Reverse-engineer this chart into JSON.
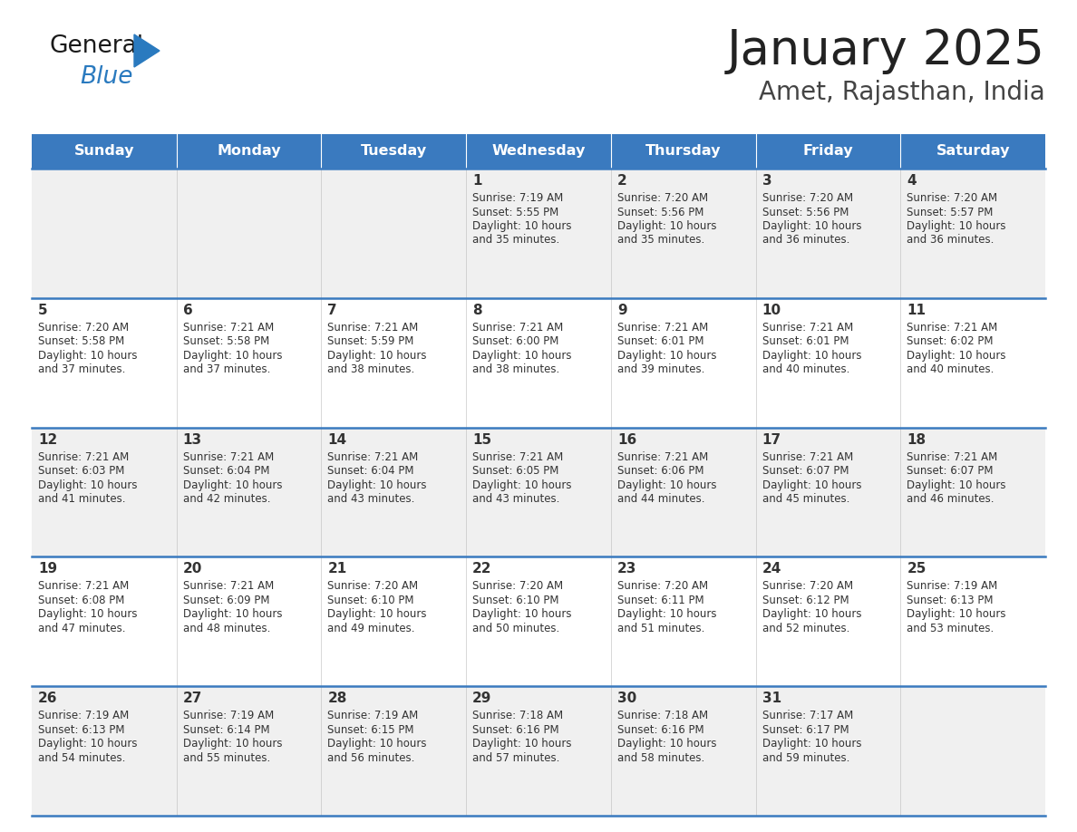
{
  "title": "January 2025",
  "subtitle": "Amet, Rajasthan, India",
  "days_of_week": [
    "Sunday",
    "Monday",
    "Tuesday",
    "Wednesday",
    "Thursday",
    "Friday",
    "Saturday"
  ],
  "header_bg": "#3a7abf",
  "header_text_color": "#ffffff",
  "row_bg_odd": "#f0f0f0",
  "row_bg_even": "#ffffff",
  "cell_text_color": "#333333",
  "border_color": "#3a7abf",
  "title_color": "#222222",
  "subtitle_color": "#444444",
  "weeks": [
    [
      {
        "day": null,
        "sunrise": null,
        "sunset": null,
        "daylight": null
      },
      {
        "day": null,
        "sunrise": null,
        "sunset": null,
        "daylight": null
      },
      {
        "day": null,
        "sunrise": null,
        "sunset": null,
        "daylight": null
      },
      {
        "day": 1,
        "sunrise": "7:19 AM",
        "sunset": "5:55 PM",
        "daylight": "10 hours and 35 minutes."
      },
      {
        "day": 2,
        "sunrise": "7:20 AM",
        "sunset": "5:56 PM",
        "daylight": "10 hours and 35 minutes."
      },
      {
        "day": 3,
        "sunrise": "7:20 AM",
        "sunset": "5:56 PM",
        "daylight": "10 hours and 36 minutes."
      },
      {
        "day": 4,
        "sunrise": "7:20 AM",
        "sunset": "5:57 PM",
        "daylight": "10 hours and 36 minutes."
      }
    ],
    [
      {
        "day": 5,
        "sunrise": "7:20 AM",
        "sunset": "5:58 PM",
        "daylight": "10 hours and 37 minutes."
      },
      {
        "day": 6,
        "sunrise": "7:21 AM",
        "sunset": "5:58 PM",
        "daylight": "10 hours and 37 minutes."
      },
      {
        "day": 7,
        "sunrise": "7:21 AM",
        "sunset": "5:59 PM",
        "daylight": "10 hours and 38 minutes."
      },
      {
        "day": 8,
        "sunrise": "7:21 AM",
        "sunset": "6:00 PM",
        "daylight": "10 hours and 38 minutes."
      },
      {
        "day": 9,
        "sunrise": "7:21 AM",
        "sunset": "6:01 PM",
        "daylight": "10 hours and 39 minutes."
      },
      {
        "day": 10,
        "sunrise": "7:21 AM",
        "sunset": "6:01 PM",
        "daylight": "10 hours and 40 minutes."
      },
      {
        "day": 11,
        "sunrise": "7:21 AM",
        "sunset": "6:02 PM",
        "daylight": "10 hours and 40 minutes."
      }
    ],
    [
      {
        "day": 12,
        "sunrise": "7:21 AM",
        "sunset": "6:03 PM",
        "daylight": "10 hours and 41 minutes."
      },
      {
        "day": 13,
        "sunrise": "7:21 AM",
        "sunset": "6:04 PM",
        "daylight": "10 hours and 42 minutes."
      },
      {
        "day": 14,
        "sunrise": "7:21 AM",
        "sunset": "6:04 PM",
        "daylight": "10 hours and 43 minutes."
      },
      {
        "day": 15,
        "sunrise": "7:21 AM",
        "sunset": "6:05 PM",
        "daylight": "10 hours and 43 minutes."
      },
      {
        "day": 16,
        "sunrise": "7:21 AM",
        "sunset": "6:06 PM",
        "daylight": "10 hours and 44 minutes."
      },
      {
        "day": 17,
        "sunrise": "7:21 AM",
        "sunset": "6:07 PM",
        "daylight": "10 hours and 45 minutes."
      },
      {
        "day": 18,
        "sunrise": "7:21 AM",
        "sunset": "6:07 PM",
        "daylight": "10 hours and 46 minutes."
      }
    ],
    [
      {
        "day": 19,
        "sunrise": "7:21 AM",
        "sunset": "6:08 PM",
        "daylight": "10 hours and 47 minutes."
      },
      {
        "day": 20,
        "sunrise": "7:21 AM",
        "sunset": "6:09 PM",
        "daylight": "10 hours and 48 minutes."
      },
      {
        "day": 21,
        "sunrise": "7:20 AM",
        "sunset": "6:10 PM",
        "daylight": "10 hours and 49 minutes."
      },
      {
        "day": 22,
        "sunrise": "7:20 AM",
        "sunset": "6:10 PM",
        "daylight": "10 hours and 50 minutes."
      },
      {
        "day": 23,
        "sunrise": "7:20 AM",
        "sunset": "6:11 PM",
        "daylight": "10 hours and 51 minutes."
      },
      {
        "day": 24,
        "sunrise": "7:20 AM",
        "sunset": "6:12 PM",
        "daylight": "10 hours and 52 minutes."
      },
      {
        "day": 25,
        "sunrise": "7:19 AM",
        "sunset": "6:13 PM",
        "daylight": "10 hours and 53 minutes."
      }
    ],
    [
      {
        "day": 26,
        "sunrise": "7:19 AM",
        "sunset": "6:13 PM",
        "daylight": "10 hours and 54 minutes."
      },
      {
        "day": 27,
        "sunrise": "7:19 AM",
        "sunset": "6:14 PM",
        "daylight": "10 hours and 55 minutes."
      },
      {
        "day": 28,
        "sunrise": "7:19 AM",
        "sunset": "6:15 PM",
        "daylight": "10 hours and 56 minutes."
      },
      {
        "day": 29,
        "sunrise": "7:18 AM",
        "sunset": "6:16 PM",
        "daylight": "10 hours and 57 minutes."
      },
      {
        "day": 30,
        "sunrise": "7:18 AM",
        "sunset": "6:16 PM",
        "daylight": "10 hours and 58 minutes."
      },
      {
        "day": 31,
        "sunrise": "7:17 AM",
        "sunset": "6:17 PM",
        "daylight": "10 hours and 59 minutes."
      },
      {
        "day": null,
        "sunrise": null,
        "sunset": null,
        "daylight": null
      }
    ]
  ]
}
